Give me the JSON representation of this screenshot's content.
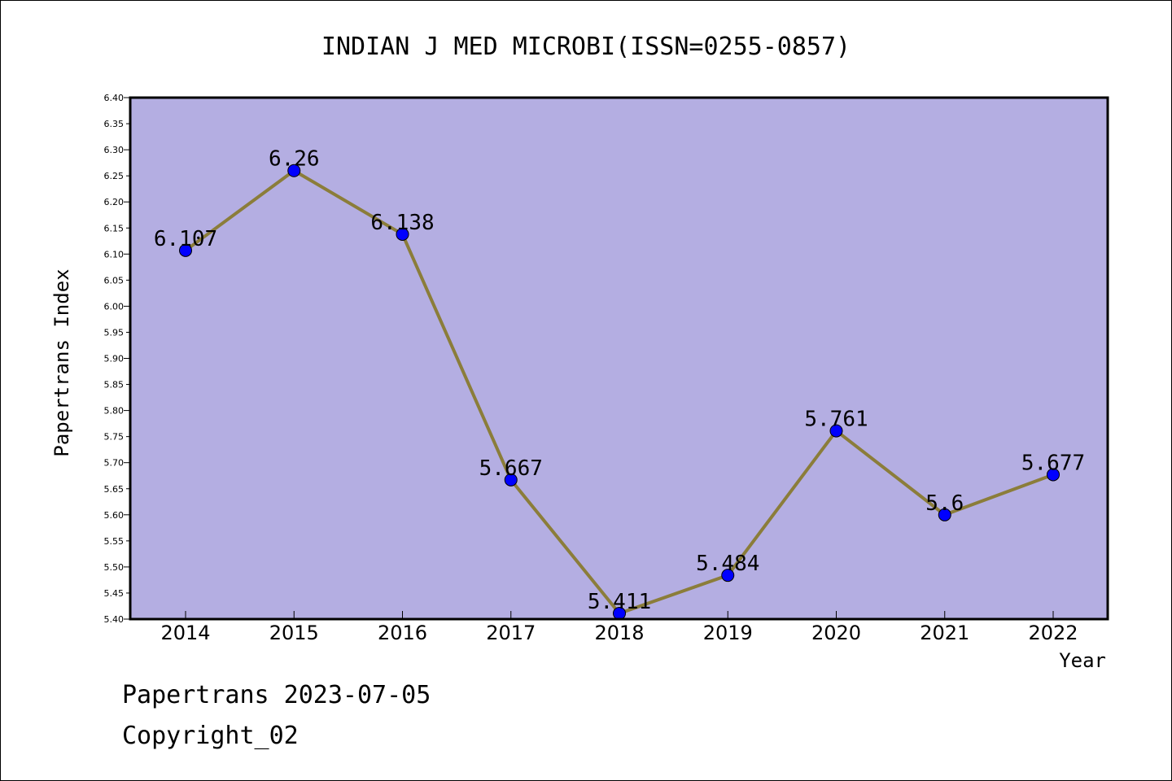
{
  "chart_data": {
    "type": "line",
    "title": "INDIAN J MED MICROBI(ISSN=0255-0857)",
    "xlabel": "Year",
    "ylabel": "Papertrans Index",
    "categories": [
      "2014",
      "2015",
      "2016",
      "2017",
      "2018",
      "2019",
      "2020",
      "2021",
      "2022"
    ],
    "values": [
      6.107,
      6.26,
      6.138,
      5.667,
      5.411,
      5.484,
      5.761,
      5.6,
      5.677
    ],
    "data_labels": [
      "6.107",
      "6.26",
      "6.138",
      "5.667",
      "5.411",
      "5.484",
      "5.761",
      "5.6",
      "5.677"
    ],
    "ylim": [
      5.4,
      6.4
    ],
    "yticks": [
      "5.40",
      "5.45",
      "5.50",
      "5.55",
      "5.60",
      "5.65",
      "5.70",
      "5.75",
      "5.80",
      "5.85",
      "5.90",
      "5.95",
      "6.00",
      "6.05",
      "6.10",
      "6.15",
      "6.20",
      "6.25",
      "6.30",
      "6.35",
      "6.40"
    ],
    "grid": false,
    "colors": {
      "plot_background": "#b4aee2",
      "line": "#8b7d3a",
      "marker": "#0000ff"
    }
  },
  "footer": {
    "line1": "Papertrans 2023-07-05",
    "line2": "Copyright_02"
  }
}
